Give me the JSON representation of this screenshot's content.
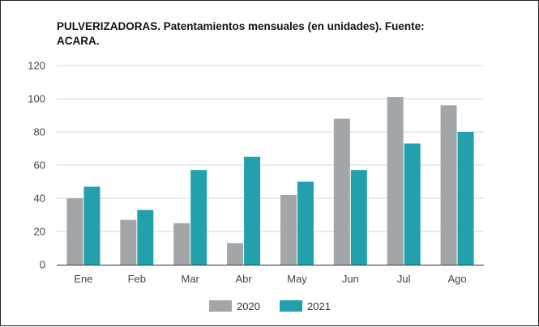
{
  "chart_data": {
    "type": "bar",
    "title": "PULVERIZADORAS. Patentamientos mensuales (en unidades). Fuente: ACARA.",
    "xlabel": "",
    "ylabel": "",
    "categories": [
      "Ene",
      "Feb",
      "Mar",
      "Abr",
      "May",
      "Jun",
      "Jul",
      "Ago"
    ],
    "series": [
      {
        "name": "2020",
        "color": "#a3a6a8",
        "values": [
          40,
          27,
          25,
          13,
          42,
          88,
          101,
          96
        ]
      },
      {
        "name": "2021",
        "color": "#22a1ad",
        "values": [
          47,
          33,
          57,
          65,
          50,
          57,
          73,
          80
        ]
      }
    ],
    "ylim": [
      0,
      120
    ],
    "yticks": [
      "0",
      "20",
      "40",
      "60",
      "80",
      "100",
      "120"
    ],
    "grid": true,
    "legend_position": "bottom"
  }
}
